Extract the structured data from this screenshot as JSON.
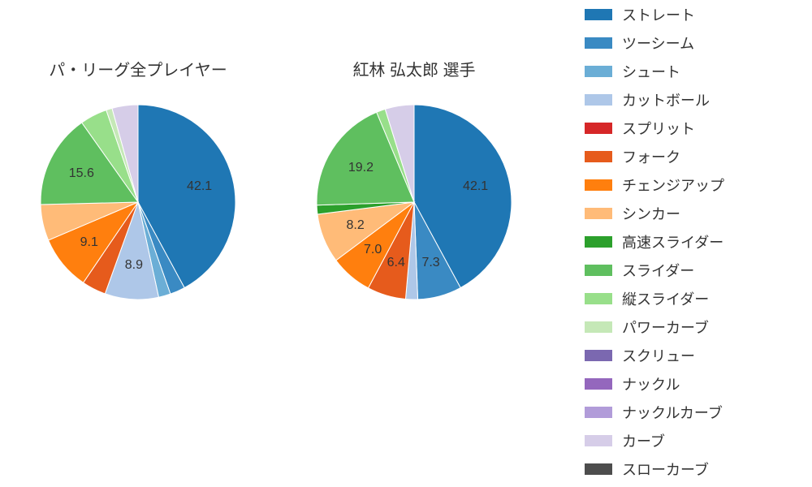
{
  "background_color": "#ffffff",
  "text_color": "#333333",
  "title_fontsize": 20,
  "label_fontsize": 16,
  "legend_fontsize": 18,
  "pie_radius": 120,
  "legend": [
    {
      "label": "ストレート",
      "color": "#1f77b4"
    },
    {
      "label": "ツーシーム",
      "color": "#3a8ac3"
    },
    {
      "label": "シュート",
      "color": "#6baed6"
    },
    {
      "label": "カットボール",
      "color": "#aec7e8"
    },
    {
      "label": "スプリット",
      "color": "#d62728"
    },
    {
      "label": "フォーク",
      "color": "#e65b1c"
    },
    {
      "label": "チェンジアップ",
      "color": "#ff7f0e"
    },
    {
      "label": "シンカー",
      "color": "#ffbb78"
    },
    {
      "label": "高速スライダー",
      "color": "#2ca02c"
    },
    {
      "label": "スライダー",
      "color": "#5fbf5f"
    },
    {
      "label": "縦スライダー",
      "color": "#98df8a"
    },
    {
      "label": "パワーカーブ",
      "color": "#c5e8b7"
    },
    {
      "label": "スクリュー",
      "color": "#7b68b0"
    },
    {
      "label": "ナックル",
      "color": "#9467bd"
    },
    {
      "label": "ナックルカーブ",
      "color": "#b19cd9"
    },
    {
      "label": "カーブ",
      "color": "#d6cde8"
    },
    {
      "label": "スローカーブ",
      "color": "#4d4d4d"
    }
  ],
  "charts": [
    {
      "title": "パ・リーグ全プレイヤー",
      "slices": [
        {
          "value": 42.1,
          "color": "#1f77b4",
          "label": "42.1"
        },
        {
          "value": 2.5,
          "color": "#3a8ac3"
        },
        {
          "value": 2.0,
          "color": "#6baed6"
        },
        {
          "value": 8.9,
          "color": "#aec7e8",
          "label": "8.9"
        },
        {
          "value": 4.0,
          "color": "#e65b1c"
        },
        {
          "value": 9.1,
          "color": "#ff7f0e",
          "label": "9.1"
        },
        {
          "value": 6.0,
          "color": "#ffbb78"
        },
        {
          "value": 15.6,
          "color": "#5fbf5f",
          "label": "15.6"
        },
        {
          "value": 4.5,
          "color": "#98df8a"
        },
        {
          "value": 1.0,
          "color": "#c5e8b7"
        },
        {
          "value": 4.3,
          "color": "#d6cde8"
        }
      ]
    },
    {
      "title": "紅林 弘太郎  選手",
      "slices": [
        {
          "value": 42.1,
          "color": "#1f77b4",
          "label": "42.1"
        },
        {
          "value": 7.3,
          "color": "#3a8ac3",
          "label": "7.3"
        },
        {
          "value": 2.0,
          "color": "#aec7e8"
        },
        {
          "value": 6.4,
          "color": "#e65b1c",
          "label": "6.4"
        },
        {
          "value": 7.0,
          "color": "#ff7f0e",
          "label": "7.0"
        },
        {
          "value": 8.2,
          "color": "#ffbb78",
          "label": "8.2"
        },
        {
          "value": 1.5,
          "color": "#2ca02c"
        },
        {
          "value": 19.2,
          "color": "#5fbf5f",
          "label": "19.2"
        },
        {
          "value": 1.5,
          "color": "#98df8a"
        },
        {
          "value": 4.8,
          "color": "#d6cde8"
        }
      ]
    }
  ]
}
